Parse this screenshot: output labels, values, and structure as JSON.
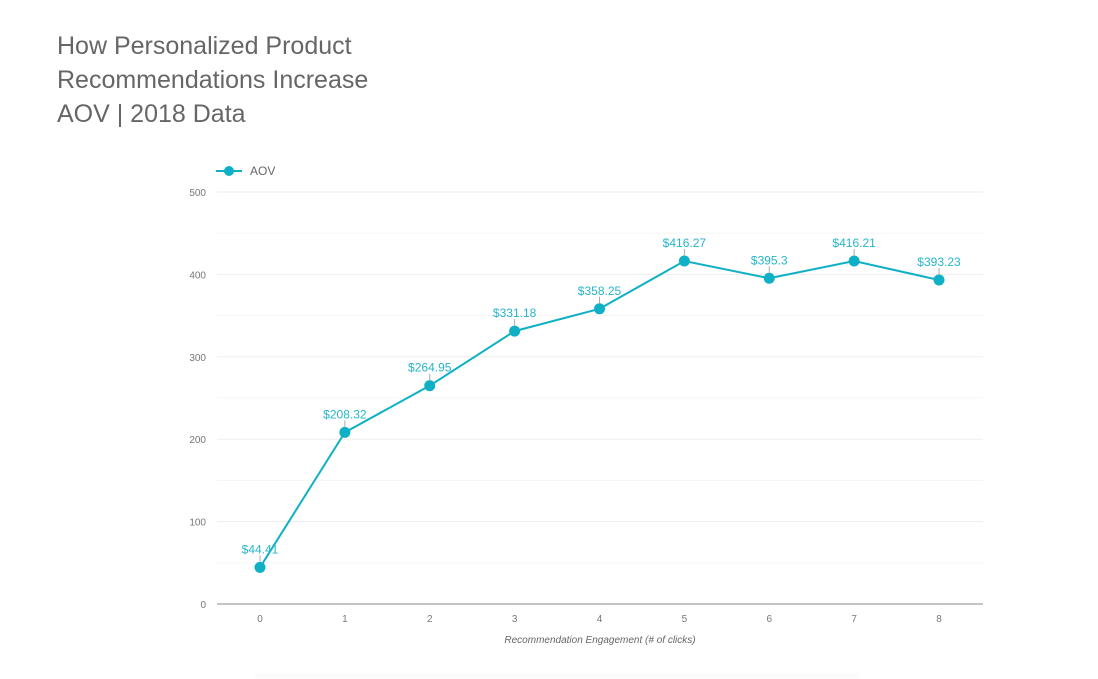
{
  "title_lines": [
    "How Personalized Product",
    "Recommendations Increase",
    "AOV | 2018 Data"
  ],
  "colors": {
    "series": "#0fb0c6",
    "label": "#26b5c9",
    "grid": "#eeeeee",
    "axis": "#888888",
    "leader": "#aaaaaa"
  },
  "chart_data": {
    "type": "line",
    "title": "How Personalized Product Recommendations Increase AOV | 2018 Data",
    "xlabel": "Recommendation Engagement (# of clicks)",
    "ylabel": "",
    "categories": [
      "0",
      "1",
      "2",
      "3",
      "4",
      "5",
      "6",
      "7",
      "8"
    ],
    "series": [
      {
        "name": "AOV",
        "values": [
          44.41,
          208.32,
          264.95,
          331.18,
          358.25,
          416.27,
          395.3,
          416.21,
          393.23
        ],
        "labels": [
          "$44.41",
          "$208.32",
          "$264.95",
          "$331.18",
          "$358.25",
          "$416.27",
          "$395.3",
          "$416.21",
          "$393.23"
        ]
      }
    ],
    "ylim": [
      0,
      500
    ],
    "yticks": [
      0,
      100,
      200,
      300,
      400,
      500
    ],
    "minor_gridlines": [
      50,
      150,
      250,
      350,
      450
    ],
    "grid": true,
    "legend": "top-left"
  }
}
